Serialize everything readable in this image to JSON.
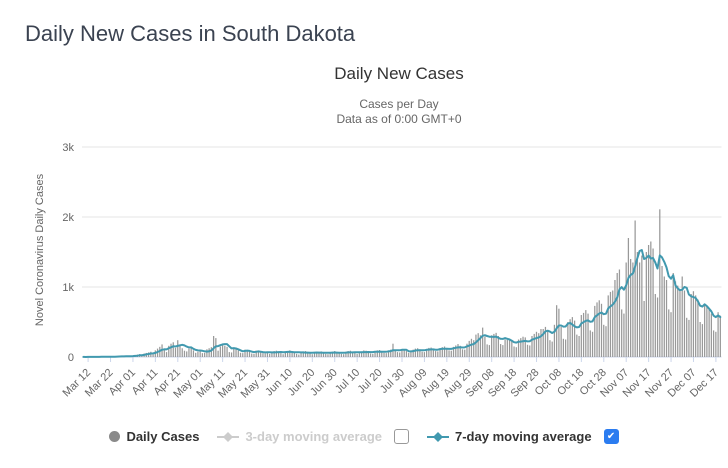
{
  "page": {
    "title": "Daily New Cases in South Dakota"
  },
  "chart": {
    "title": "Daily New Cases",
    "subtitle_line1": "Cases per Day",
    "subtitle_line2": "Data as of 0:00 GMT+0",
    "y_axis_title": "Novel Coronavirus Daily Cases"
  },
  "colors": {
    "page_title": "#3b4351",
    "chart_title": "#333333",
    "subtitle": "#666666",
    "axis_labels": "#666666",
    "gridline": "#e6e6e6",
    "axis_line": "#ccd6eb",
    "bars": "#999999",
    "avg_line": "#4199af",
    "legend_text": "#333333",
    "legend_disabled": "#cccccc",
    "daily_cases_marker": "#8a8a8a",
    "checkbox_checked": "#2b7cf0"
  },
  "legend": {
    "items": [
      {
        "label": "Daily Cases",
        "enabled": true,
        "marker": "circle"
      },
      {
        "label": "3-day moving average",
        "enabled": false,
        "marker": "diamond-line",
        "checkbox": "unchecked"
      },
      {
        "label": "7-day moving average",
        "enabled": true,
        "marker": "diamond-line",
        "checkbox": "checked"
      }
    ]
  },
  "chart_data": {
    "type": "bar",
    "title": "Daily New Cases",
    "xlabel": "",
    "ylabel": "Novel Coronavirus Daily Cases",
    "ylim": [
      0,
      3000
    ],
    "y_ticks": [
      "0",
      "1k",
      "2k",
      "3k"
    ],
    "y_tick_values": [
      0,
      1000,
      2000,
      3000
    ],
    "grid": true,
    "legend_position": "bottom",
    "start_date": "Mar 10",
    "x_tick_first_index": 2,
    "x_tick_step": 10,
    "x_tick_labels": [
      "Mar 12",
      "Mar 22",
      "Apr 01",
      "Apr 11",
      "Apr 21",
      "May 01",
      "May 11",
      "May 21",
      "May 31",
      "Jun 10",
      "Jun 20",
      "Jun 30",
      "Jul 10",
      "Jul 20",
      "Jul 30",
      "Aug 09",
      "Aug 19",
      "Aug 29",
      "Sep 08",
      "Sep 18",
      "Sep 28",
      "Oct 08",
      "Oct 18",
      "Oct 28",
      "Nov 07",
      "Nov 17",
      "Nov 27",
      "Dec 07",
      "Dec 17"
    ],
    "series": [
      {
        "name": "Daily Cases",
        "type": "column",
        "visible": true
      },
      {
        "name": "3-day moving average",
        "type": "line",
        "visible": false
      },
      {
        "name": "7-day moving average",
        "type": "line",
        "visible": true,
        "derivation": "trailing 7-day mean of daily_cases"
      }
    ],
    "daily_cases": [
      1,
      0,
      2,
      1,
      0,
      3,
      2,
      4,
      3,
      2,
      5,
      6,
      4,
      8,
      7,
      10,
      8,
      12,
      9,
      14,
      16,
      12,
      20,
      28,
      35,
      42,
      25,
      50,
      58,
      66,
      75,
      40,
      95,
      120,
      145,
      180,
      110,
      70,
      160,
      190,
      210,
      130,
      240,
      170,
      125,
      90,
      80,
      120,
      135,
      95,
      60,
      75,
      85,
      55,
      60,
      110,
      125,
      140,
      300,
      270,
      90,
      150,
      180,
      160,
      145,
      70,
      65,
      120,
      110,
      95,
      60,
      55,
      105,
      95,
      85,
      50,
      45,
      90,
      85,
      80,
      55,
      50,
      70,
      45,
      75,
      85,
      90,
      80,
      55,
      40,
      70,
      85,
      95,
      75,
      60,
      45,
      35,
      65,
      80,
      85,
      70,
      55,
      40,
      50,
      70,
      75,
      80,
      65,
      45,
      40,
      60,
      75,
      85,
      70,
      55,
      45,
      40,
      75,
      85,
      90,
      70,
      60,
      45,
      55,
      80,
      95,
      90,
      75,
      50,
      45,
      85,
      95,
      100,
      80,
      60,
      55,
      90,
      105,
      190,
      95,
      70,
      65,
      100,
      110,
      85,
      60,
      70,
      105,
      120,
      125,
      110,
      75,
      70,
      115,
      130,
      135,
      120,
      85,
      80,
      125,
      140,
      150,
      130,
      95,
      90,
      145,
      165,
      185,
      160,
      110,
      105,
      190,
      230,
      260,
      240,
      320,
      340,
      310,
      420,
      290,
      180,
      170,
      310,
      330,
      345,
      300,
      185,
      170,
      250,
      245,
      255,
      230,
      150,
      140,
      250,
      270,
      290,
      280,
      175,
      165,
      300,
      330,
      360,
      340,
      400,
      400,
      430,
      370,
      240,
      220,
      460,
      740,
      690,
      430,
      260,
      250,
      500,
      540,
      570,
      520,
      320,
      300,
      600,
      630,
      670,
      620,
      380,
      360,
      730,
      780,
      810,
      760,
      460,
      440,
      880,
      930,
      950,
      1100,
      1200,
      1250,
      680,
      620,
      1350,
      1700,
      1400,
      1350,
      1950,
      1500,
      1350,
      1450,
      800,
      1500,
      1600,
      1650,
      1550,
      900,
      850,
      2110,
      1300,
      1150,
      1100,
      680,
      640,
      1200,
      1080,
      1020,
      960,
      1150,
      950,
      560,
      530,
      900,
      940,
      880,
      820,
      500,
      470,
      760,
      720,
      680,
      620,
      380,
      360,
      640,
      590
    ]
  }
}
